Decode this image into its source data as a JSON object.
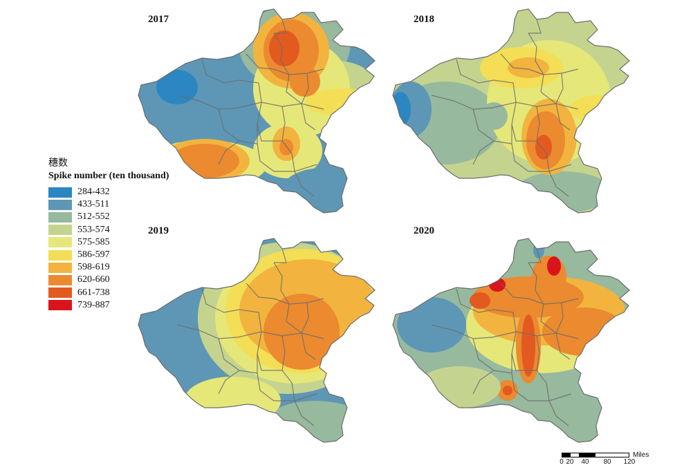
{
  "legend": {
    "title_cn": "穗数",
    "title_en": "Spike number (ten thousand)",
    "classes": [
      {
        "label": "284-432",
        "color": "#2c86c2"
      },
      {
        "label": "433-511",
        "color": "#5d97b5"
      },
      {
        "label": "512-552",
        "color": "#97b99e"
      },
      {
        "label": "553-574",
        "color": "#c4d48f"
      },
      {
        "label": "575-585",
        "color": "#e6e779"
      },
      {
        "label": "586-597",
        "color": "#f3de55"
      },
      {
        "label": "598-619",
        "color": "#f2b43e"
      },
      {
        "label": "620-660",
        "color": "#eb8a2f"
      },
      {
        "label": "661-738",
        "color": "#e25a20"
      },
      {
        "label": "739-887",
        "color": "#d9141c"
      }
    ]
  },
  "maps": [
    {
      "year": "2017"
    },
    {
      "year": "2018"
    },
    {
      "year": "2019"
    },
    {
      "year": "2020"
    }
  ],
  "scalebar": {
    "ticks": [
      "0",
      "20",
      "40",
      "80",
      "120"
    ],
    "unit": "Miles"
  }
}
